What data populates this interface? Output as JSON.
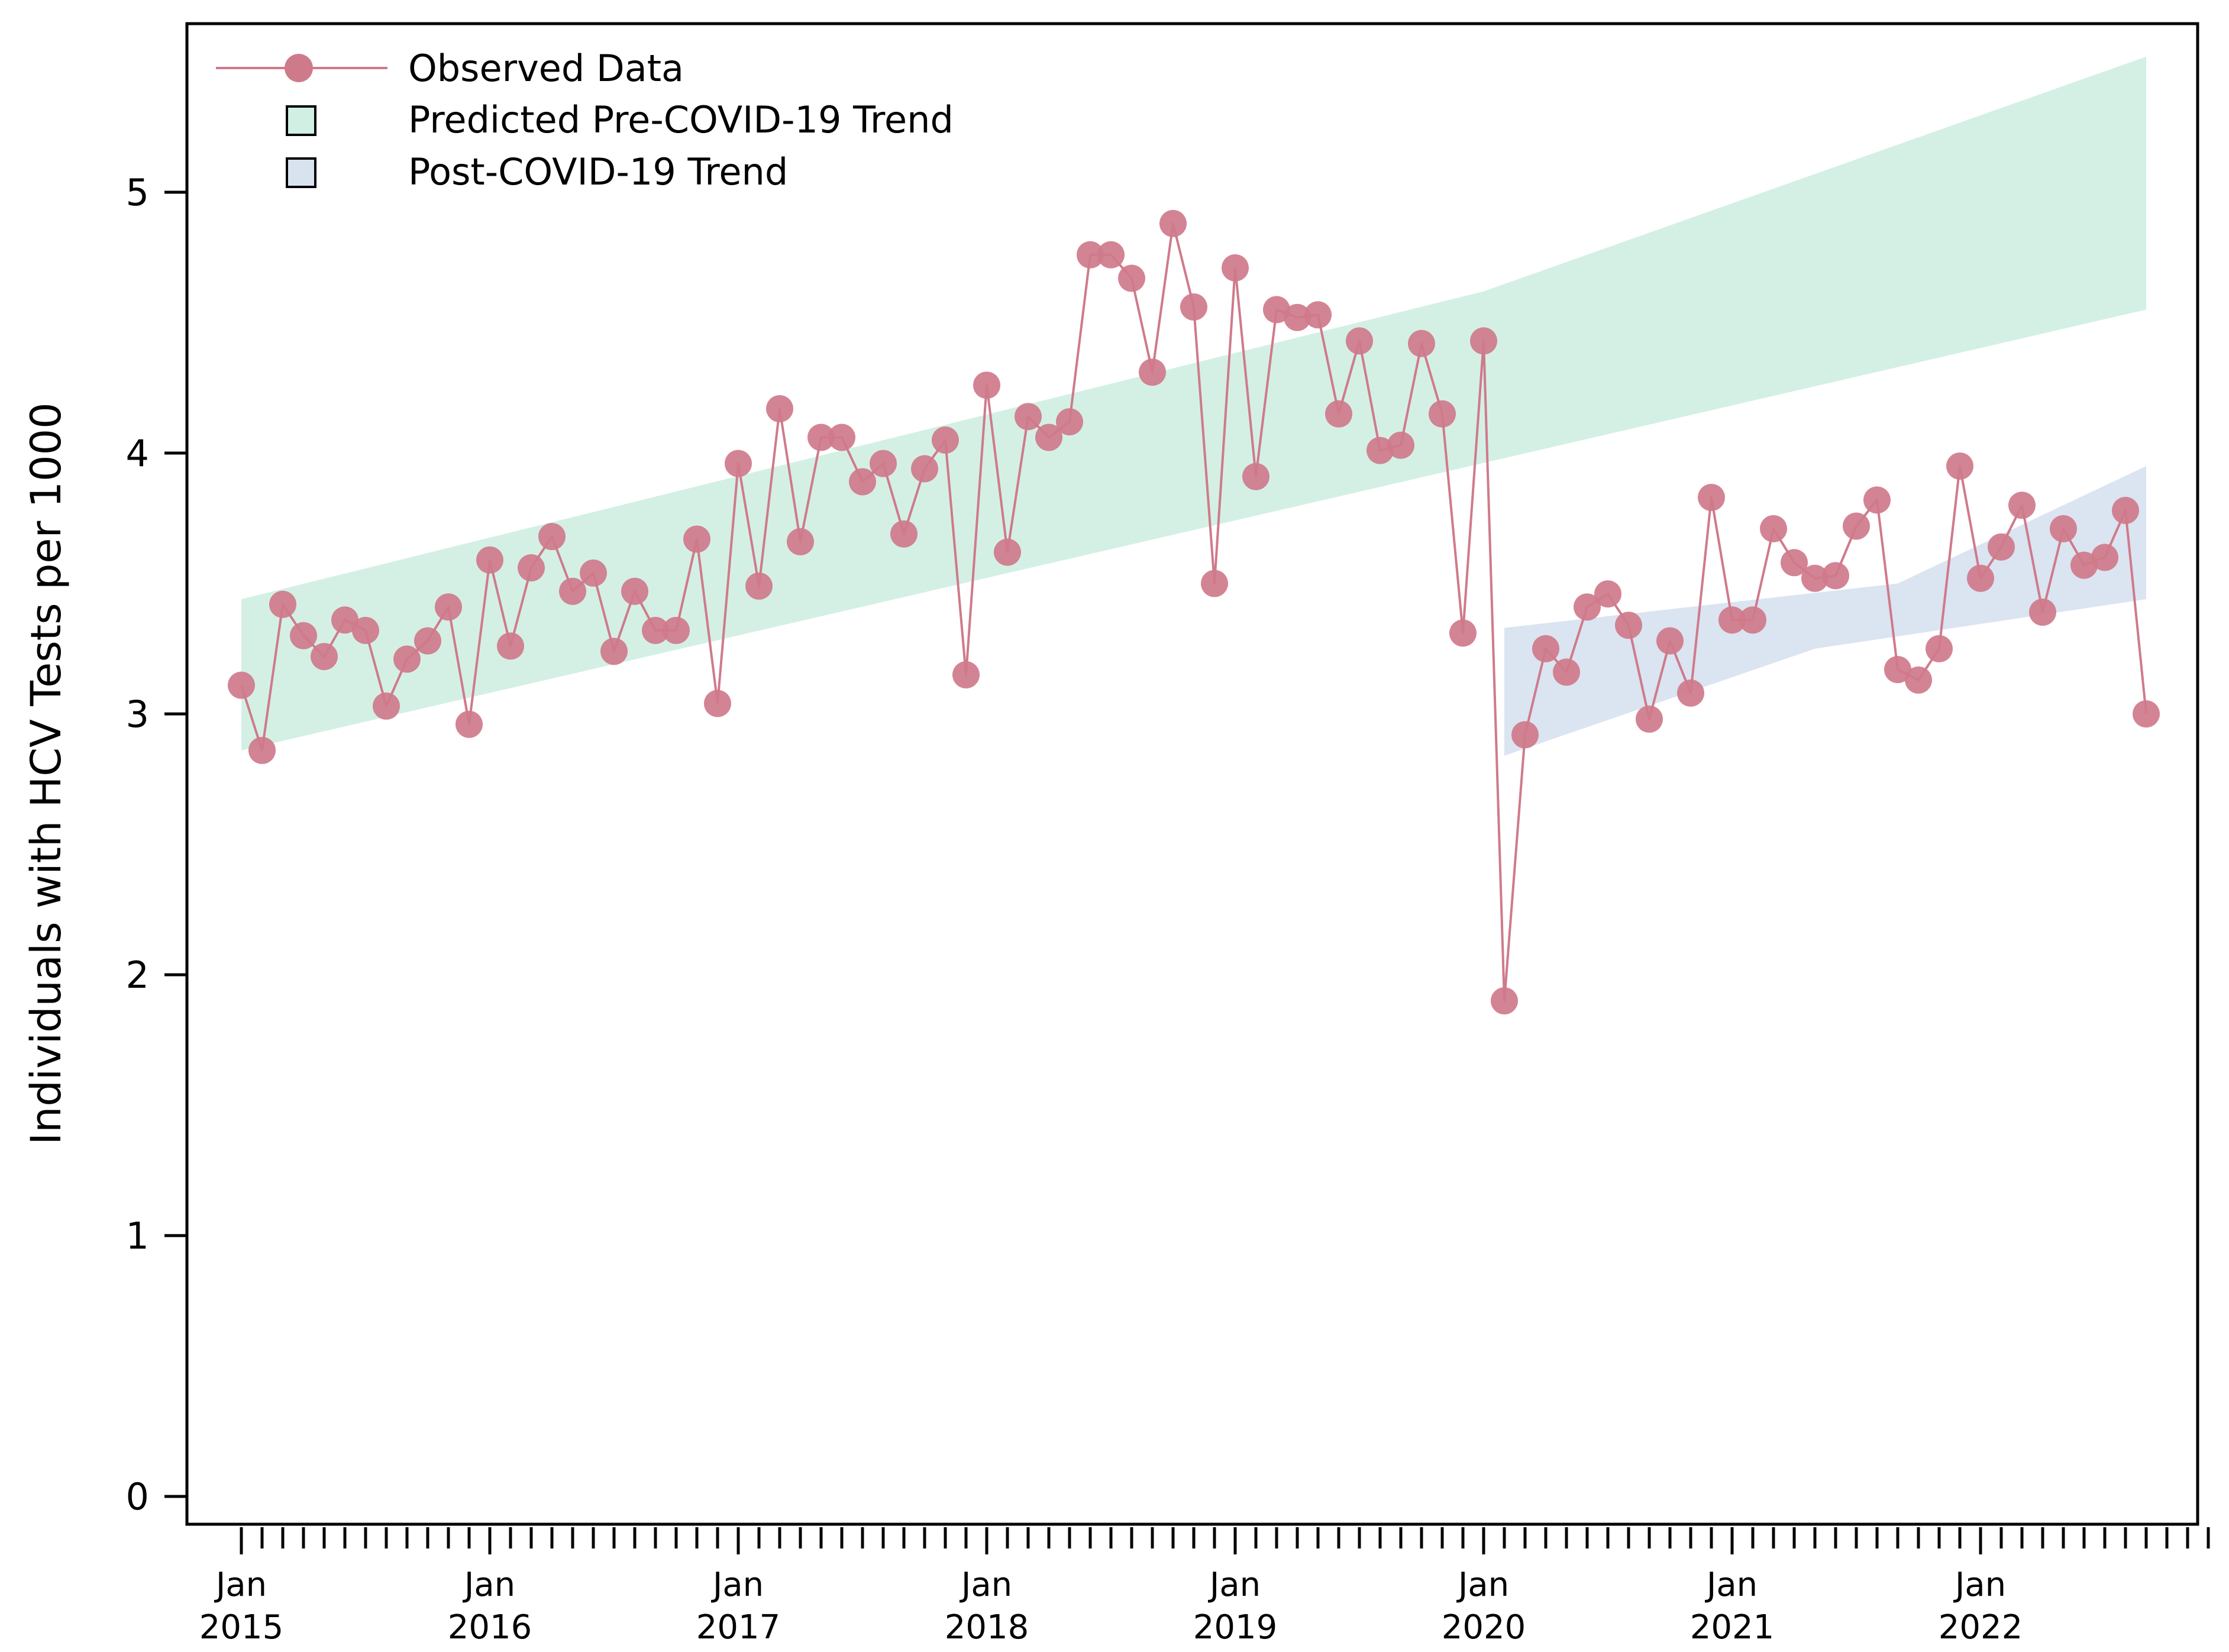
{
  "chart_data": {
    "type": "line",
    "title": "",
    "xlabel": "",
    "ylabel": "Individuals with HCV Tests per 1000",
    "ylim": [
      -0.1,
      5.85
    ],
    "yticks": [
      0,
      1,
      2,
      3,
      4,
      5
    ],
    "ytick_labels": [
      "0",
      "1",
      "2",
      "3",
      "4",
      "5"
    ],
    "x_start": "Jan 2015",
    "x_end": "Dec 2022",
    "n_months": 96,
    "xtick_labels": [
      {
        "index": 0,
        "month": "Jan",
        "year": "2015"
      },
      {
        "index": 12,
        "month": "Jan",
        "year": "2016"
      },
      {
        "index": 24,
        "month": "Jan",
        "year": "2017"
      },
      {
        "index": 36,
        "month": "Jan",
        "year": "2018"
      },
      {
        "index": 48,
        "month": "Jan",
        "year": "2019"
      },
      {
        "index": 60,
        "month": "Jan",
        "year": "2020"
      },
      {
        "index": 72,
        "month": "Jan",
        "year": "2021"
      },
      {
        "index": 84,
        "month": "Jan",
        "year": "2022"
      }
    ],
    "grid": false,
    "legend_position": "top-left",
    "legend": [
      {
        "label": "Observed Data",
        "type": "line-marker",
        "color": "#cf7a8b"
      },
      {
        "label": "Predicted Pre-COVID-19 Trend",
        "type": "band",
        "color": "#d2efe4"
      },
      {
        "label": "Post-COVID-19 Trend",
        "type": "band",
        "color": "#d9e3f0"
      }
    ],
    "series": [
      {
        "name": "Observed Data",
        "start_index": 0,
        "values": [
          3.11,
          2.86,
          3.42,
          3.3,
          3.22,
          3.36,
          3.32,
          3.03,
          3.21,
          3.28,
          3.41,
          2.96,
          3.59,
          3.26,
          3.56,
          3.68,
          3.47,
          3.54,
          3.24,
          3.47,
          3.32,
          3.32,
          3.67,
          3.04,
          3.96,
          3.49,
          4.17,
          3.66,
          4.06,
          4.06,
          3.89,
          3.96,
          3.69,
          3.94,
          4.05,
          3.15,
          4.26,
          3.62,
          4.14,
          4.06,
          4.12,
          4.76,
          4.76,
          4.67,
          4.31,
          4.88,
          4.56,
          3.5,
          4.71,
          3.91,
          4.55,
          4.52,
          4.53,
          4.15,
          4.43,
          4.01,
          4.03,
          4.42,
          4.15,
          3.31,
          4.43,
          1.9,
          2.92,
          3.25,
          3.16,
          3.41,
          3.46,
          3.34,
          2.98,
          3.28,
          3.08,
          3.83,
          3.36,
          3.36,
          3.71,
          3.58,
          3.52,
          3.53,
          3.72,
          3.82,
          3.17,
          3.13,
          3.25,
          3.95,
          3.52,
          3.64,
          3.8,
          3.39,
          3.71,
          3.57,
          3.6,
          3.78,
          3.0
        ]
      }
    ],
    "bands": [
      {
        "name": "Predicted Pre-COVID-19 Trend",
        "start_index": 0,
        "end_index": 92,
        "lower": [
          2.86,
          4.55
        ],
        "upper": [
          3.44,
          5.52
        ],
        "upper_mid": {
          "index": 60,
          "value": 4.62
        }
      },
      {
        "name": "Post-COVID-19 Trend",
        "start_index": 61,
        "end_index": 92,
        "lower": [
          2.84,
          3.44
        ],
        "upper": [
          3.33,
          3.95
        ],
        "lower_mid": {
          "index": 76,
          "value": 3.25
        },
        "upper_mid": {
          "index": 80,
          "value": 3.5
        }
      }
    ]
  }
}
